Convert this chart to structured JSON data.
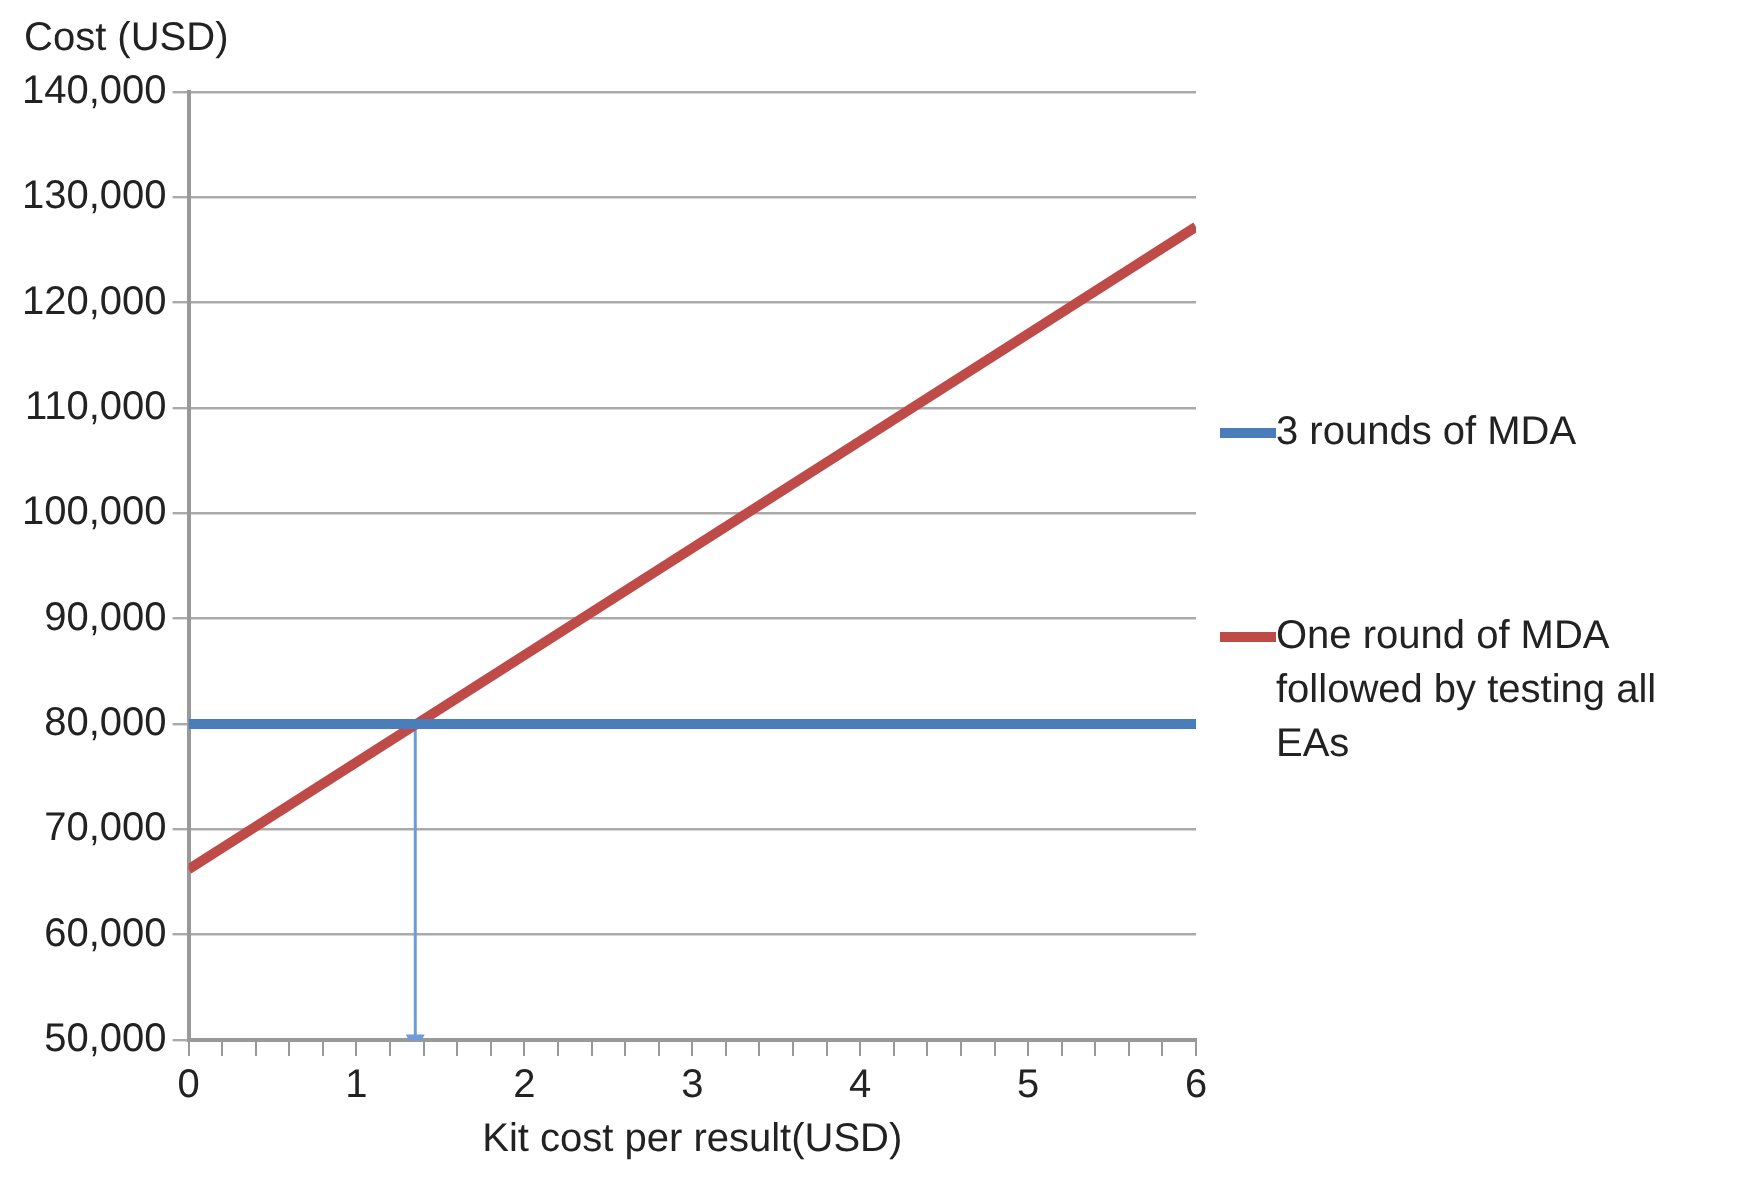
{
  "chart_data": {
    "type": "line",
    "xlabel": "Kit cost per result(USD)",
    "ylabel": "Cost (USD)",
    "x": [
      0,
      6
    ],
    "series": [
      {
        "name": "3 rounds of MDA",
        "color": "#4a7ebb",
        "values": [
          80000,
          80000
        ]
      },
      {
        "name": "One round of MDA followed by testing all EAs",
        "color": "#be4b48",
        "values": [
          66200,
          127200
        ]
      },
      {
        "type": "line",
        "marker": "triangle",
        "color": "#6f9bd8",
        "x": [
          1.35,
          1.35
        ],
        "values": [
          80000,
          50000
        ]
      }
    ],
    "xlim": [
      0,
      6
    ],
    "ylim": [
      50000,
      140000
    ],
    "xticks": [
      0,
      {
        "value": 0.2,
        "label": null
      },
      {
        "value": 0.4,
        "label": null
      },
      {
        "value": 0.6,
        "label": null
      },
      {
        "value": 0.8,
        "label": null
      },
      1,
      {
        "value": 1.2,
        "label": null
      },
      {
        "value": 1.4,
        "label": null
      },
      {
        "value": 1.6,
        "label": null
      },
      {
        "value": 1.8,
        "label": null
      },
      2,
      {
        "value": 2.2,
        "label": null
      },
      {
        "value": 2.4,
        "label": null
      },
      {
        "value": 2.6,
        "label": null
      },
      {
        "value": 2.8,
        "label": null
      },
      3,
      {
        "value": 3.2,
        "label": null
      },
      {
        "value": 3.4,
        "label": null
      },
      {
        "value": 3.6,
        "label": null
      },
      {
        "value": 3.8,
        "label": null
      },
      4,
      {
        "value": 4.2,
        "label": null
      },
      {
        "value": 4.4,
        "label": null
      },
      {
        "value": 4.6,
        "label": null
      },
      {
        "value": 4.8,
        "label": null
      },
      5,
      {
        "value": 5.2,
        "label": null
      },
      {
        "value": 5.4,
        "label": null
      },
      {
        "value": 5.6,
        "label": null
      },
      {
        "value": 5.8,
        "label": null
      },
      6
    ],
    "yticks": [
      {
        "value": 50000,
        "label": "50,000"
      },
      {
        "value": 60000,
        "label": "60,000"
      },
      {
        "value": 70000,
        "label": "70,000"
      },
      {
        "value": 80000,
        "label": "80,000"
      },
      {
        "value": 90000,
        "label": "90,000"
      },
      {
        "value": 100000,
        "label": "100,000"
      },
      {
        "value": 110000,
        "label": "110,000"
      },
      {
        "value": 120000,
        "label": "120,000"
      },
      {
        "value": 130000,
        "label": "130,000"
      },
      {
        "value": 140000,
        "label": "140,000"
      }
    ],
    "grid": "y",
    "legend": "right",
    "marker": "none",
    "line_style": "solid"
  }
}
